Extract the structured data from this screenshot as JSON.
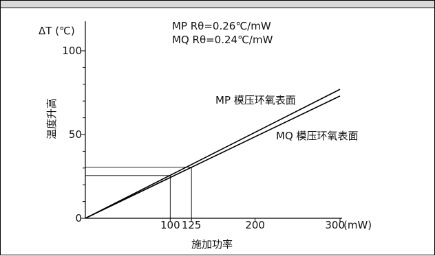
{
  "chart_data": {
    "type": "line",
    "x_unit_label": "(mW)",
    "y_unit_label": "ΔT (℃)",
    "xlim": [
      0,
      300
    ],
    "ylim": [
      0,
      100
    ],
    "x_ticks": [
      {
        "value": 100,
        "label": "100"
      },
      {
        "value": 125,
        "label": "125"
      },
      {
        "value": 200,
        "label": "200"
      },
      {
        "value": 300,
        "label": "300"
      }
    ],
    "y_ticks": [
      {
        "value": 0,
        "label": "0"
      },
      {
        "value": 50,
        "label": "50"
      },
      {
        "value": 100,
        "label": "100"
      }
    ],
    "y_minor_step": 10,
    "xlabel": "施加功率",
    "ylabel": "温度升高",
    "annotations": [
      "MP  Rθ=0.26℃/mW",
      "MQ  Rθ=0.24℃/mW"
    ],
    "series": [
      {
        "name": "MP 模压环氧表面",
        "x": [
          0,
          300
        ],
        "y": [
          0,
          77
        ]
      },
      {
        "name": "MQ 模压环氧表面",
        "x": [
          0,
          300
        ],
        "y": [
          0,
          73
        ]
      }
    ],
    "guides": [
      {
        "x": 100,
        "y": 25.5
      },
      {
        "x": 125,
        "y": 30.5
      }
    ]
  }
}
